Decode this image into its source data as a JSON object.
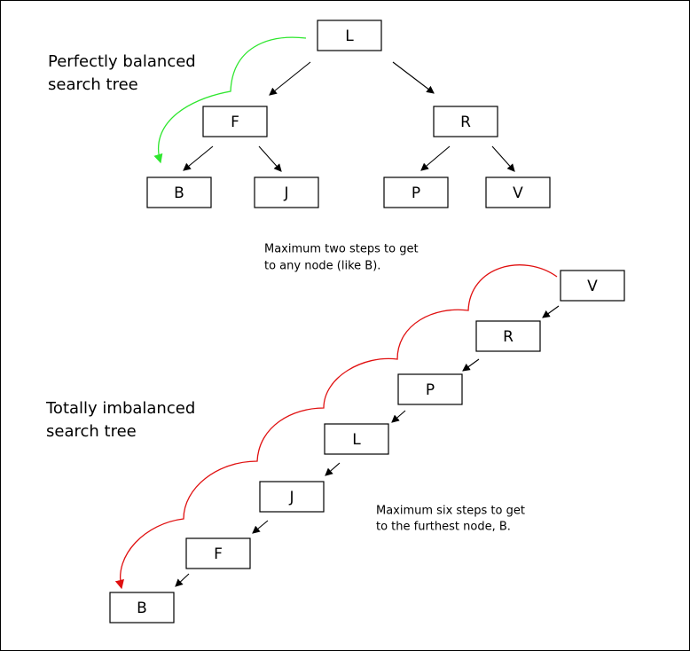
{
  "balanced": {
    "caption": [
      "Perfectly balanced",
      "search tree"
    ],
    "note": [
      "Maximum two steps to get",
      "to any node (like B)."
    ],
    "nodes": [
      "L",
      "F",
      "R",
      "B",
      "J",
      "P",
      "V"
    ]
  },
  "imbalanced": {
    "caption": [
      "Totally imbalanced",
      "search tree"
    ],
    "note": [
      "Maximum six steps to get",
      "to the furthest node, B."
    ],
    "nodes": [
      "V",
      "R",
      "P",
      "L",
      "J",
      "F",
      "B"
    ]
  }
}
